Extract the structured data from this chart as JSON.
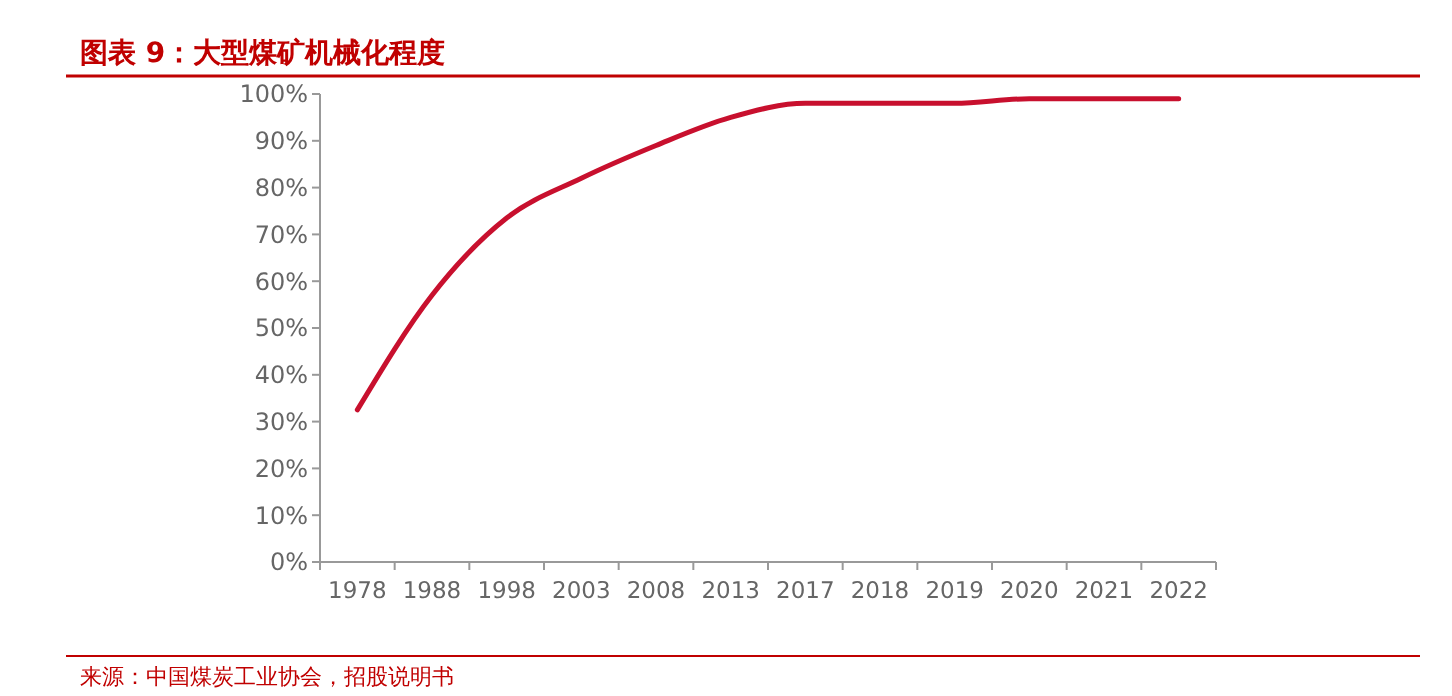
{
  "chart_data": {
    "type": "line",
    "title": "图表 9：大型煤矿机械化程度",
    "categories": [
      "1978",
      "1988",
      "1998",
      "2003",
      "2008",
      "2013",
      "2017",
      "2018",
      "2019",
      "2020",
      "2021",
      "2022"
    ],
    "series": [
      {
        "color": "#c8102e",
        "values": [
          32.5,
          57,
          73.5,
          82,
          89,
          95,
          98,
          98,
          98,
          99,
          99,
          99
        ]
      }
    ],
    "ylim": [
      0,
      100
    ],
    "yticks": [
      {
        "value": 0,
        "label": "0%"
      },
      {
        "value": 10,
        "label": "10%"
      },
      {
        "value": 20,
        "label": "20%"
      },
      {
        "value": 30,
        "label": "30%"
      },
      {
        "value": 40,
        "label": "40%"
      },
      {
        "value": 50,
        "label": "50%"
      },
      {
        "value": 60,
        "label": "60%"
      },
      {
        "value": 70,
        "label": "70%"
      },
      {
        "value": 80,
        "label": "80%"
      },
      {
        "value": 90,
        "label": "90%"
      },
      {
        "value": 100,
        "label": "100%"
      }
    ],
    "line_style": "solid",
    "annotations": [
      "来源：中国煤炭工业协会，招股说明书"
    ]
  }
}
